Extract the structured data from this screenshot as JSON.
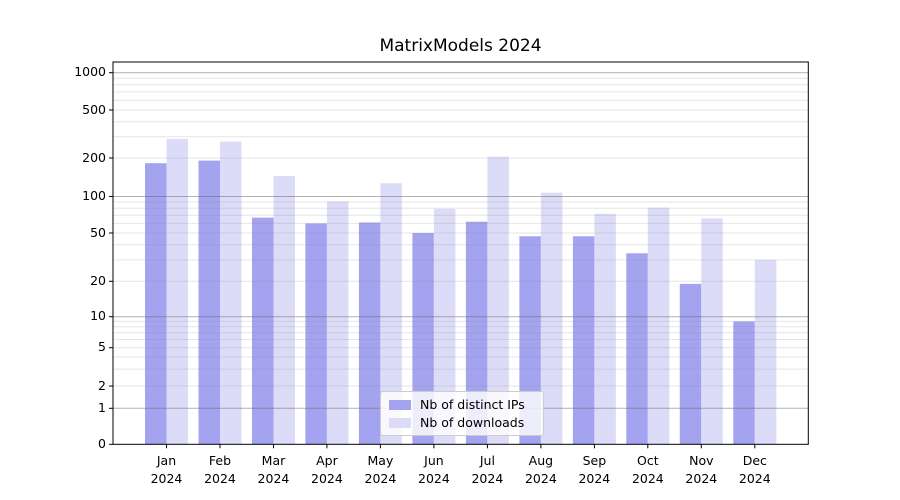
{
  "title": "MatrixModels 2024",
  "chart_data": {
    "type": "bar",
    "title": "MatrixModels 2024",
    "categories": [
      "Jan",
      "Feb",
      "Mar",
      "Apr",
      "May",
      "Jun",
      "Jul",
      "Aug",
      "Sep",
      "Oct",
      "Nov",
      "Dec"
    ],
    "year": "2024",
    "series": [
      {
        "name": "Nb of distinct IPs",
        "color": "#a3a3f0",
        "values": [
          182,
          191,
          67,
          60,
          61,
          50,
          62,
          47,
          47,
          34,
          19,
          9
        ]
      },
      {
        "name": "Nb of downloads",
        "color": "#dcdcf8",
        "values": [
          288,
          273,
          145,
          91,
          127,
          79,
          205,
          107,
          72,
          81,
          66,
          30
        ]
      }
    ],
    "xlabel": "",
    "ylabel": "",
    "yscale": "symlog",
    "yticks": [
      0,
      1,
      2,
      5,
      10,
      20,
      50,
      100,
      200,
      500,
      1000
    ],
    "ylim": [
      0,
      1300
    ],
    "grid": "horizontal major and minor",
    "legend_position": "lower center"
  },
  "legend": {
    "items": [
      {
        "label": "Nb of distinct IPs"
      },
      {
        "label": "Nb of downloads"
      }
    ]
  }
}
